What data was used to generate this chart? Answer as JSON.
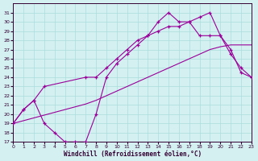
{
  "background_color": "#d4f0f0",
  "grid_color": "#aadddd",
  "line_color": "#990099",
  "xlabel": "Windchill (Refroidissement éolien,°C)",
  "ylim": [
    17,
    32
  ],
  "xlim": [
    0,
    23
  ],
  "yticks": [
    17,
    18,
    19,
    20,
    21,
    22,
    23,
    24,
    25,
    26,
    27,
    28,
    29,
    30,
    31
  ],
  "xticks": [
    0,
    1,
    2,
    3,
    4,
    5,
    6,
    7,
    8,
    9,
    10,
    11,
    12,
    13,
    14,
    15,
    16,
    17,
    18,
    19,
    20,
    21,
    22,
    23
  ],
  "curve1_x": [
    0,
    1,
    2,
    3,
    4,
    5,
    6,
    7,
    8,
    9,
    10,
    11,
    12,
    13,
    14,
    15,
    16,
    17,
    18,
    19,
    20,
    21,
    22,
    23
  ],
  "curve1_y": [
    19.0,
    20.5,
    21.5,
    19.0,
    18.0,
    17.0,
    17.0,
    17.0,
    20.0,
    24.0,
    25.5,
    26.5,
    27.5,
    28.5,
    30.0,
    31.0,
    30.0,
    30.0,
    30.5,
    31.0,
    28.5,
    27.0,
    24.5,
    24.0
  ],
  "curve2_x": [
    0,
    1,
    2,
    3,
    7,
    8,
    9,
    10,
    11,
    12,
    13,
    14,
    15,
    16,
    17,
    18,
    19,
    20,
    21,
    22,
    23
  ],
  "curve2_y": [
    19.0,
    20.5,
    21.5,
    23.0,
    24.0,
    24.0,
    25.0,
    26.0,
    27.0,
    28.0,
    28.5,
    29.0,
    29.5,
    29.5,
    30.0,
    28.5,
    28.5,
    28.5,
    26.5,
    25.0,
    24.0
  ],
  "curve3_x": [
    0,
    1,
    2,
    3,
    4,
    5,
    6,
    7,
    8,
    9,
    10,
    11,
    12,
    13,
    14,
    15,
    16,
    17,
    18,
    19,
    20,
    21,
    22,
    23
  ],
  "curve3_y": [
    19.0,
    19.3,
    19.6,
    19.9,
    20.2,
    20.5,
    20.8,
    21.1,
    21.5,
    22.0,
    22.5,
    23.0,
    23.5,
    24.0,
    24.5,
    25.0,
    25.5,
    26.0,
    26.5,
    27.0,
    27.3,
    27.5,
    27.5,
    27.5
  ]
}
